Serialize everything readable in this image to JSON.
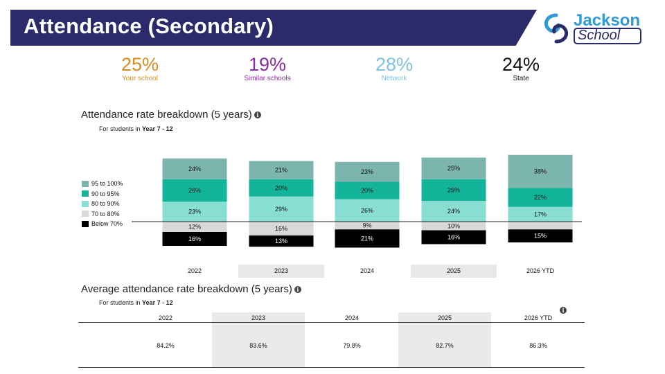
{
  "header": {
    "title": "Attendance (Secondary)"
  },
  "logo": {
    "line1": "Jackson",
    "line2": "School"
  },
  "stats": [
    {
      "value": "25%",
      "label": "Your school",
      "color": "#e08a1e"
    },
    {
      "value": "19%",
      "label": "Similar schools",
      "color": "#8d2aa6"
    },
    {
      "value": "28%",
      "label": "Network",
      "color": "#7ec3e3"
    },
    {
      "value": "24%",
      "label": "State",
      "color": "#111111"
    }
  ],
  "breakdown": {
    "title": "Attendance rate breakdown (5 years)",
    "subtitle_prefix": "For students in",
    "subtitle_bold": "Year 7 - 12"
  },
  "average": {
    "title": "Average attendance rate breakdown (5 years)",
    "subtitle_prefix": "For students in",
    "subtitle_bold": "Year 7 - 12",
    "columns": [
      "2022",
      "2023",
      "2024",
      "2025",
      "2026 YTD"
    ],
    "values": [
      "84.2%",
      "83.6%",
      "79.8%",
      "82.7%",
      "86.3%"
    ]
  },
  "chart_data": {
    "type": "bar",
    "stacked": "diverging",
    "categories": [
      "2022",
      "2023",
      "2024",
      "2025",
      "2026 YTD"
    ],
    "series": [
      {
        "name": "95 to 100%",
        "color": "#7cb5ad",
        "values": [
          24,
          21,
          23,
          25,
          38
        ]
      },
      {
        "name": "90 to 95%",
        "color": "#14b49b",
        "values": [
          26,
          20,
          20,
          25,
          22
        ]
      },
      {
        "name": "80 to 90%",
        "color": "#88ded2",
        "values": [
          23,
          29,
          26,
          24,
          17
        ]
      },
      {
        "name": "70 to 80%",
        "color": "#d9d9d9",
        "values": [
          12,
          16,
          9,
          10,
          9
        ]
      },
      {
        "name": "Below 70%",
        "color": "#000000",
        "values": [
          16,
          13,
          21,
          16,
          15
        ]
      }
    ],
    "data_labels": [
      [
        "24%",
        "21%",
        "23%",
        "25%",
        "38%"
      ],
      [
        "26%",
        "20%",
        "20%",
        "25%",
        "22%"
      ],
      [
        "23%",
        "29%",
        "26%",
        "24%",
        "17%"
      ],
      [
        "12%",
        "16%",
        "9%",
        "10%",
        ""
      ],
      [
        "16%",
        "13%",
        "21%",
        "16%",
        "15%"
      ]
    ],
    "legend_position": "left",
    "grid": false
  }
}
